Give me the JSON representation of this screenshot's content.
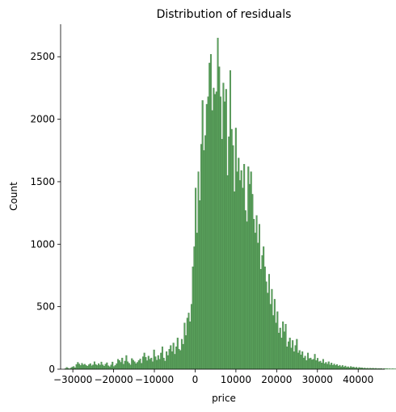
{
  "chart_data": {
    "type": "bar",
    "title": "Distribution of residuals",
    "xlabel": "price",
    "ylabel": "Count",
    "xlim": [
      -33000,
      46500
    ],
    "ylim": [
      0,
      2760
    ],
    "xticks": [
      -30000,
      -20000,
      -10000,
      0,
      10000,
      20000,
      30000,
      40000
    ],
    "xtick_labels": [
      "−30000",
      "−20000",
      "−10000",
      "0",
      "10000",
      "20000",
      "30000",
      "40000"
    ],
    "yticks": [
      0,
      500,
      1000,
      1500,
      2000,
      2500
    ],
    "ytick_labels": [
      "0",
      "500",
      "1000",
      "1500",
      "2000",
      "2500"
    ],
    "grid": false,
    "bar_color": "#59A05B",
    "edge_color": "#3F7A41",
    "bins": {
      "start": -32000,
      "width": 340,
      "values": [
        5,
        15,
        8,
        3,
        10,
        18,
        22,
        12,
        38,
        55,
        42,
        30,
        48,
        35,
        40,
        30,
        25,
        36,
        45,
        28,
        35,
        60,
        38,
        30,
        45,
        33,
        58,
        35,
        25,
        40,
        52,
        28,
        20,
        35,
        58,
        22,
        30,
        45,
        80,
        70,
        55,
        90,
        40,
        65,
        110,
        60,
        48,
        35,
        85,
        72,
        60,
        45,
        55,
        70,
        82,
        48,
        100,
        130,
        95,
        68,
        105,
        80,
        90,
        60,
        155,
        100,
        72,
        110,
        80,
        130,
        180,
        90,
        65,
        140,
        110,
        160,
        190,
        140,
        210,
        120,
        180,
        250,
        160,
        150,
        240,
        200,
        370,
        270,
        410,
        450,
        380,
        520,
        820,
        980,
        1450,
        1090,
        1580,
        1350,
        1800,
        2150,
        1750,
        1870,
        2120,
        2180,
        2450,
        2520,
        2070,
        2250,
        2200,
        2220,
        2650,
        2420,
        2180,
        1840,
        2290,
        2140,
        2240,
        1550,
        1860,
        2390,
        1920,
        1790,
        1420,
        1930,
        1580,
        1690,
        1510,
        1590,
        1450,
        1640,
        1270,
        1180,
        1620,
        1480,
        1580,
        1400,
        1200,
        1090,
        1230,
        1010,
        1160,
        800,
        910,
        980,
        820,
        700,
        610,
        760,
        520,
        640,
        430,
        560,
        370,
        460,
        290,
        330,
        250,
        380,
        300,
        360,
        180,
        220,
        250,
        170,
        230,
        140,
        190,
        240,
        130,
        150,
        115,
        140,
        90,
        105,
        70,
        130,
        85,
        90,
        75,
        80,
        120,
        70,
        88,
        60,
        65,
        50,
        80,
        45,
        55,
        40,
        60,
        35,
        50,
        32,
        42,
        30,
        38,
        25,
        32,
        20,
        30,
        18,
        26,
        15,
        20,
        12,
        22,
        14,
        18,
        10,
        16,
        8,
        14,
        10,
        12,
        7,
        10,
        6,
        9,
        5,
        8,
        6,
        8,
        5,
        7,
        4,
        6,
        5,
        6,
        3,
        5,
        4,
        5,
        3,
        4,
        2,
        4,
        3,
        3,
        2,
        3,
        2,
        3,
        1,
        2,
        2
      ]
    }
  }
}
